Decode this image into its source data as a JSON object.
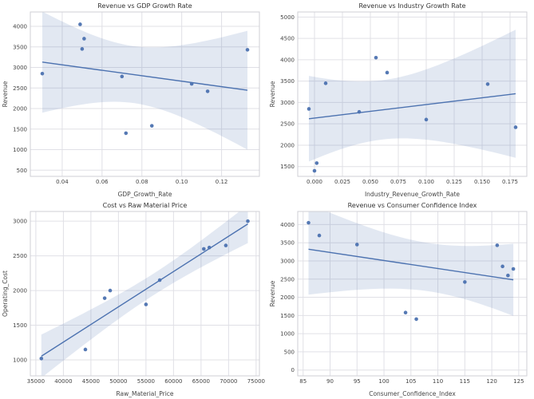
{
  "style": {
    "point_color": "#4c72b0",
    "line_color": "#4c72b0",
    "band_color": "#4c72b0",
    "band_opacity": 0.16,
    "grid_color": "#e0e0e6",
    "spine_color": "#cfcfd6",
    "plot_bg": "#ffffff",
    "title_color": "#333333",
    "text_color": "#444444"
  },
  "chart_data": [
    {
      "type": "scatter",
      "title": "Revenue vs GDP Growth Rate",
      "xlabel": "GDP_Growth_Rate",
      "ylabel": "Revenue",
      "regression": true,
      "x": [
        0.03,
        0.049,
        0.05,
        0.051,
        0.07,
        0.072,
        0.085,
        0.105,
        0.113,
        0.133
      ],
      "y": [
        2850,
        4050,
        3450,
        3700,
        2780,
        1400,
        1580,
        2600,
        2420,
        3430
      ],
      "xlim": [
        0.024,
        0.139
      ],
      "ylim": [
        350,
        4350
      ],
      "xticks": [
        0.04,
        0.06,
        0.08,
        0.1,
        0.12
      ],
      "xtick_labels": [
        "0.04",
        "0.06",
        "0.08",
        "0.10",
        "0.12"
      ],
      "yticks": [
        500,
        1000,
        1500,
        2000,
        2500,
        3000,
        3500,
        4000
      ],
      "ytick_labels": [
        "500",
        "1000",
        "1500",
        "2000",
        "2500",
        "3000",
        "3500",
        "4000"
      ]
    },
    {
      "type": "scatter",
      "title": "Revenue vs Industry Growth Rate",
      "xlabel": "Industry_Revenue_Growth_Rate",
      "ylabel": "Revenue",
      "regression": true,
      "x": [
        -0.005,
        0.0,
        0.002,
        0.01,
        0.04,
        0.055,
        0.065,
        0.1,
        0.155,
        0.18
      ],
      "y": [
        2850,
        1400,
        1580,
        3450,
        2780,
        4050,
        3700,
        2600,
        3430,
        2420
      ],
      "xlim": [
        -0.015,
        0.19
      ],
      "ylim": [
        1270,
        5120
      ],
      "xticks": [
        0.0,
        0.025,
        0.05,
        0.075,
        0.1,
        0.125,
        0.15,
        0.175
      ],
      "xtick_labels": [
        "0.000",
        "0.025",
        "0.050",
        "0.075",
        "0.100",
        "0.125",
        "0.150",
        "0.175"
      ],
      "yticks": [
        1500,
        2000,
        2500,
        3000,
        3500,
        4000,
        4500,
        5000
      ],
      "ytick_labels": [
        "1500",
        "2000",
        "2500",
        "3000",
        "3500",
        "4000",
        "4500",
        "5000"
      ]
    },
    {
      "type": "scatter",
      "title": "Cost vs Raw Material Price",
      "xlabel": "Raw_Material_Price",
      "ylabel": "Operating_Cost",
      "regression": true,
      "x": [
        36000,
        44000,
        47500,
        48500,
        55000,
        57500,
        65500,
        66500,
        69500,
        73500
      ],
      "y": [
        1020,
        1150,
        1890,
        2000,
        1800,
        2150,
        2600,
        2620,
        2650,
        3000
      ],
      "xlim": [
        34000,
        75600
      ],
      "ylim": [
        770,
        3140
      ],
      "xticks": [
        35000,
        40000,
        45000,
        50000,
        55000,
        60000,
        65000,
        70000,
        75000
      ],
      "xtick_labels": [
        "35000",
        "40000",
        "45000",
        "50000",
        "55000",
        "60000",
        "65000",
        "70000",
        "75000"
      ],
      "yticks": [
        1000,
        1500,
        2000,
        2500,
        3000
      ],
      "ytick_labels": [
        "1000",
        "1500",
        "2000",
        "2500",
        "3000"
      ]
    },
    {
      "type": "scatter",
      "title": "Revenue vs Consumer Confidence Index",
      "xlabel": "Consumer_Confidence_Index",
      "ylabel": "Revenue",
      "regression": true,
      "x": [
        86,
        88,
        95,
        104,
        106,
        115,
        121,
        122,
        123,
        124
      ],
      "y": [
        4050,
        3700,
        3450,
        1580,
        1400,
        2420,
        3430,
        2850,
        2600,
        2780
      ],
      "xlim": [
        84,
        126.5
      ],
      "ylim": [
        -160,
        4360
      ],
      "xticks": [
        85,
        90,
        95,
        100,
        105,
        110,
        115,
        120,
        125
      ],
      "xtick_labels": [
        "85",
        "90",
        "95",
        "100",
        "105",
        "110",
        "115",
        "120",
        "125"
      ],
      "yticks": [
        0,
        500,
        1000,
        1500,
        2000,
        2500,
        3000,
        3500,
        4000
      ],
      "ytick_labels": [
        "0",
        "500",
        "1000",
        "1500",
        "2000",
        "2500",
        "3000",
        "3500",
        "4000"
      ]
    }
  ]
}
